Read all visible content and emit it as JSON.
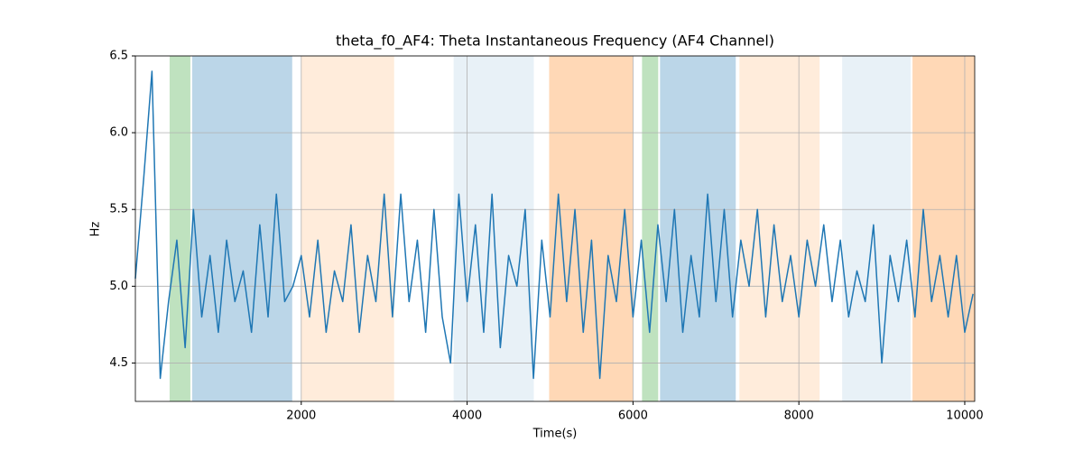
{
  "chart_data": {
    "type": "line",
    "title": "theta_f0_AF4: Theta Instantaneous Frequency (AF4 Channel)",
    "x_label": "Time(s)",
    "y_label": "Hz",
    "xlim": [
      0,
      10120
    ],
    "ylim": [
      4.25,
      6.5
    ],
    "xticks": [
      2000,
      4000,
      6000,
      8000,
      10000
    ],
    "yticks": [
      4.5,
      {
        "value": 5,
        "label": "5.0"
      },
      5.5,
      {
        "value": 6,
        "label": "6.0"
      },
      6.5
    ],
    "grid": true,
    "spans": [
      {
        "start": 413,
        "end": 663,
        "color": "#2ca02c",
        "opacity": 0.3
      },
      {
        "start": 685,
        "end": 1891,
        "color": "#1f77b4",
        "opacity": 0.3
      },
      {
        "start": 2000,
        "end": 3120,
        "color": "#ff7f0e",
        "opacity": 0.15
      },
      {
        "start": 3837,
        "end": 4804,
        "color": "#1f77b4",
        "opacity": 0.1
      },
      {
        "start": 4989,
        "end": 6000,
        "color": "#ff7f0e",
        "opacity": 0.3
      },
      {
        "start": 6109,
        "end": 6304,
        "color": "#2ca02c",
        "opacity": 0.3
      },
      {
        "start": 6326,
        "end": 7239,
        "color": "#1f77b4",
        "opacity": 0.3
      },
      {
        "start": 7283,
        "end": 8250,
        "color": "#ff7f0e",
        "opacity": 0.15
      },
      {
        "start": 8522,
        "end": 9348,
        "color": "#1f77b4",
        "opacity": 0.1
      },
      {
        "start": 9370,
        "end": 10120,
        "color": "#ff7f0e",
        "opacity": 0.3
      }
    ],
    "x": [
      0,
      100,
      200,
      300,
      400,
      500,
      600,
      700,
      800,
      900,
      1000,
      1100,
      1200,
      1300,
      1400,
      1500,
      1600,
      1700,
      1800,
      1900,
      2000,
      2100,
      2200,
      2300,
      2400,
      2500,
      2600,
      2700,
      2800,
      2900,
      3000,
      3100,
      3200,
      3300,
      3400,
      3500,
      3600,
      3700,
      3800,
      3900,
      4000,
      4100,
      4200,
      4300,
      4400,
      4500,
      4600,
      4700,
      4800,
      4900,
      5000,
      5100,
      5200,
      5300,
      5400,
      5500,
      5600,
      5700,
      5800,
      5900,
      6000,
      6100,
      6200,
      6300,
      6400,
      6500,
      6600,
      6700,
      6800,
      6900,
      7000,
      7100,
      7200,
      7300,
      7400,
      7500,
      7600,
      7700,
      7800,
      7900,
      8000,
      8100,
      8200,
      8300,
      8400,
      8500,
      8600,
      8700,
      8800,
      8900,
      9000,
      9100,
      9200,
      9300,
      9400,
      9500,
      9600,
      9700,
      9800,
      9900,
      10000,
      10100
    ],
    "series": [
      {
        "color": "#1f77b4",
        "values": [
          5.05,
          5.7,
          6.4,
          4.4,
          4.9,
          5.3,
          4.6,
          5.5,
          4.8,
          5.2,
          4.7,
          5.3,
          4.9,
          5.1,
          4.7,
          5.4,
          4.8,
          5.6,
          4.9,
          5.0,
          5.2,
          4.8,
          5.3,
          4.7,
          5.1,
          4.9,
          5.4,
          4.7,
          5.2,
          4.9,
          5.6,
          4.8,
          5.6,
          4.9,
          5.3,
          4.7,
          5.5,
          4.8,
          4.5,
          5.6,
          4.9,
          5.4,
          4.7,
          5.6,
          4.6,
          5.2,
          5.0,
          5.5,
          4.4,
          5.3,
          4.8,
          5.6,
          4.9,
          5.5,
          4.7,
          5.3,
          4.4,
          5.2,
          4.9,
          5.5,
          4.8,
          5.3,
          4.7,
          5.4,
          4.9,
          5.5,
          4.7,
          5.2,
          4.8,
          5.6,
          4.9,
          5.5,
          4.8,
          5.3,
          5.0,
          5.5,
          4.8,
          5.4,
          4.9,
          5.2,
          4.8,
          5.3,
          5.0,
          5.4,
          4.9,
          5.3,
          4.8,
          5.1,
          4.9,
          5.4,
          4.5,
          5.2,
          4.9,
          5.3,
          4.8,
          5.5,
          4.9,
          5.2,
          4.8,
          5.2,
          4.7,
          4.95
        ]
      }
    ]
  }
}
